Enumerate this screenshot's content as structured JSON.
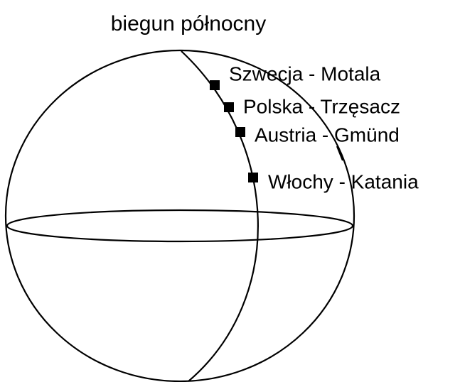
{
  "title": "biegun północny",
  "nodes": [
    {
      "label": "Szwecja - Motala"
    },
    {
      "label": "Polska - Trzęsacz"
    },
    {
      "label": "Austria - Gmünd"
    },
    {
      "label": "Włochy - Katania"
    }
  ]
}
